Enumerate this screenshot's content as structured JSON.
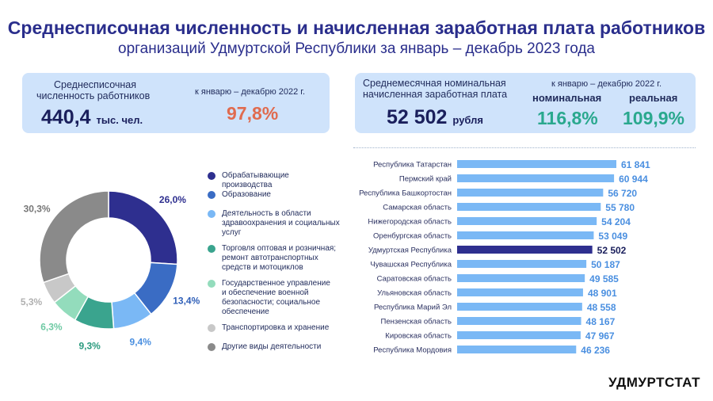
{
  "header": {
    "title": "Среднесписочная численность и начисленная заработная плата работников",
    "subtitle": "организаций Удмуртской Республики за январь – декабрь 2023 года"
  },
  "card_employment": {
    "label_line1": "Среднесписочная",
    "label_line2": "численность работников",
    "value": "440,4",
    "unit": "тыс. чел.",
    "compare_label": "к январю – декабрю 2022 г.",
    "compare_value": "97,8%"
  },
  "card_wage": {
    "label_line1": "Среднемесячная номинальная",
    "label_line2": "начисленная заработная плата",
    "value": "52 502",
    "unit": "рубля",
    "compare_label": "к январю – декабрю 2022 г.",
    "nominal_label": "номинальная",
    "nominal_value": "116,8%",
    "real_label": "реальная",
    "real_value": "109,9%"
  },
  "colors": {
    "manufacturing": "#2e2f8f",
    "education": "#3a6cc4",
    "health": "#7ab8f5",
    "trade": "#3aa48e",
    "government": "#93dcbc",
    "transport": "#c8c8c8",
    "other": "#8a8a8a",
    "bar": "#7ab8f5",
    "bar_highlight": "#2e2f8f"
  },
  "chart_data": [
    {
      "type": "pie",
      "style": "donut",
      "title": "",
      "categories": [
        "Обрабатывающие производства",
        "Образование",
        "Деятельность в области здравоохранения и социальных услуг",
        "Торговля оптовая и розничная; ремонт автотранспортных средств и мотоциклов",
        "Государственное управление и обеспечение военной безопасности; социальное обеспечение",
        "Транспортировка и хранение",
        "Другие виды деятельности"
      ],
      "values": [
        26.0,
        13.4,
        9.4,
        9.3,
        6.3,
        5.3,
        30.3
      ],
      "value_labels": [
        "26,0%",
        "13,4%",
        "9,4%",
        "9,3%",
        "6,3%",
        "5,3%",
        "30,3%"
      ],
      "legend_lines": [
        [
          "Обрабатывающие производства"
        ],
        [
          "Образование"
        ],
        [
          "Деятельность в области",
          "здравоохранения и социальных",
          "услуг"
        ],
        [
          "Торговля оптовая и розничная;",
          "ремонт автотранспортных",
          "средств и мотоциклов"
        ],
        [
          "Государственное управление",
          "и обеспечение военной",
          "безопасности; социальное",
          "обеспечение"
        ],
        [
          "Транспортировка и хранение"
        ],
        [
          "Другие виды деятельности"
        ]
      ],
      "legend_position": "right"
    },
    {
      "type": "bar",
      "orientation": "horizontal",
      "title": "",
      "categories": [
        "Республика Татарстан",
        "Пермский край",
        "Республика Башкортостан",
        "Самарская область",
        "Нижегородская область",
        "Оренбургская область",
        "Удмуртская Республика",
        "Чувашская Республика",
        "Саратовская область",
        "Ульяновская область",
        "Республика Марий Эл",
        "Пензенская область",
        "Кировская область",
        "Республика Мордовия"
      ],
      "values": [
        61841,
        60944,
        56720,
        55780,
        54204,
        53049,
        52502,
        50187,
        49585,
        48901,
        48558,
        48167,
        47967,
        46236
      ],
      "value_labels": [
        "61 841",
        "60 944",
        "56 720",
        "55 780",
        "54 204",
        "53 049",
        "52 502",
        "50 187",
        "49 585",
        "48 901",
        "48 558",
        "48 167",
        "47 967",
        "46 236"
      ],
      "highlight": "Удмуртская Республика",
      "xlim": [
        0,
        61841
      ]
    }
  ],
  "footer": {
    "brand": "УДМУРТСТАТ"
  }
}
